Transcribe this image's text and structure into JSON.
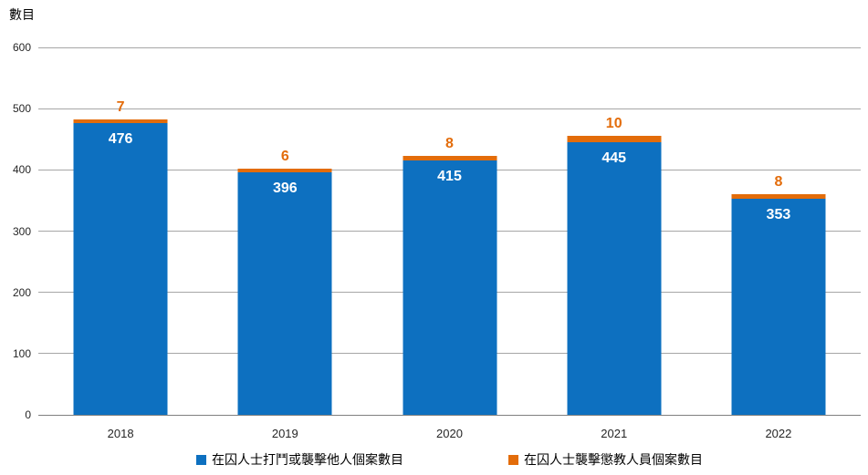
{
  "chart_data": {
    "type": "bar",
    "stacked": true,
    "title": "",
    "ylabel": "數目",
    "categories": [
      "2018",
      "2019",
      "2020",
      "2021",
      "2022"
    ],
    "series": [
      {
        "name": "在囚人士打鬥或襲擊他人個案數目",
        "color": "#0d70c0",
        "label_color": "#ffffff",
        "values": [
          476,
          396,
          415,
          445,
          353
        ]
      },
      {
        "name": "在囚人士襲擊懲教人員個案數目",
        "color": "#e36c0a",
        "label_color": "#e36c0a",
        "values": [
          7,
          6,
          8,
          10,
          8
        ]
      }
    ],
    "ylim": [
      0,
      600
    ],
    "yticks": [
      0,
      100,
      200,
      300,
      400,
      500,
      600
    ],
    "grid": true,
    "gridline_color": "#a6a6a6",
    "axis_line_color": "#808080",
    "legend_position": "bottom"
  }
}
